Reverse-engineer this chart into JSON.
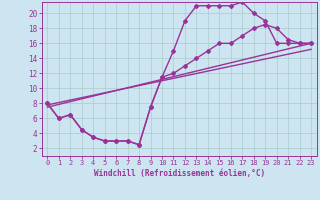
{
  "xlabel": "Windchill (Refroidissement éolien,°C)",
  "background_color": "#cce5f0",
  "grid_color": "#aacccc",
  "line_color": "#993399",
  "marker": "D",
  "markersize": 2.0,
  "linewidth": 1.0,
  "xlim": [
    -0.5,
    23.5
  ],
  "ylim": [
    1,
    21.5
  ],
  "xticks": [
    0,
    1,
    2,
    3,
    4,
    5,
    6,
    7,
    8,
    9,
    10,
    11,
    12,
    13,
    14,
    15,
    16,
    17,
    18,
    19,
    20,
    21,
    22,
    23
  ],
  "yticks": [
    2,
    4,
    6,
    8,
    10,
    12,
    14,
    16,
    18,
    20
  ],
  "series": [
    {
      "x": [
        0,
        1,
        2,
        3,
        4,
        5,
        6,
        7,
        8,
        9,
        10,
        11,
        12,
        13,
        14,
        15,
        16,
        17,
        18,
        19,
        20,
        21,
        22,
        23
      ],
      "y": [
        8,
        6,
        6.5,
        4.5,
        3.5,
        3,
        3,
        3,
        2.5,
        7.5,
        11.5,
        15,
        19,
        21,
        21,
        21,
        21,
        21.5,
        20,
        19,
        16,
        16,
        16,
        16
      ],
      "has_markers": true
    },
    {
      "x": [
        0,
        1,
        2,
        3,
        4,
        5,
        6,
        7,
        8,
        9,
        10,
        11,
        12,
        13,
        14,
        15,
        16,
        17,
        18,
        19,
        20,
        21,
        22,
        23
      ],
      "y": [
        8,
        6,
        6.5,
        4.5,
        3.5,
        3,
        3,
        3,
        2.5,
        7.5,
        11.5,
        12,
        13,
        14,
        15,
        16,
        16,
        17,
        18,
        18.5,
        18,
        16.5,
        16,
        16
      ],
      "has_markers": true
    },
    {
      "x": [
        0,
        23
      ],
      "y": [
        7.5,
        16.0
      ],
      "has_markers": false
    },
    {
      "x": [
        0,
        23
      ],
      "y": [
        7.8,
        15.2
      ],
      "has_markers": false
    }
  ]
}
